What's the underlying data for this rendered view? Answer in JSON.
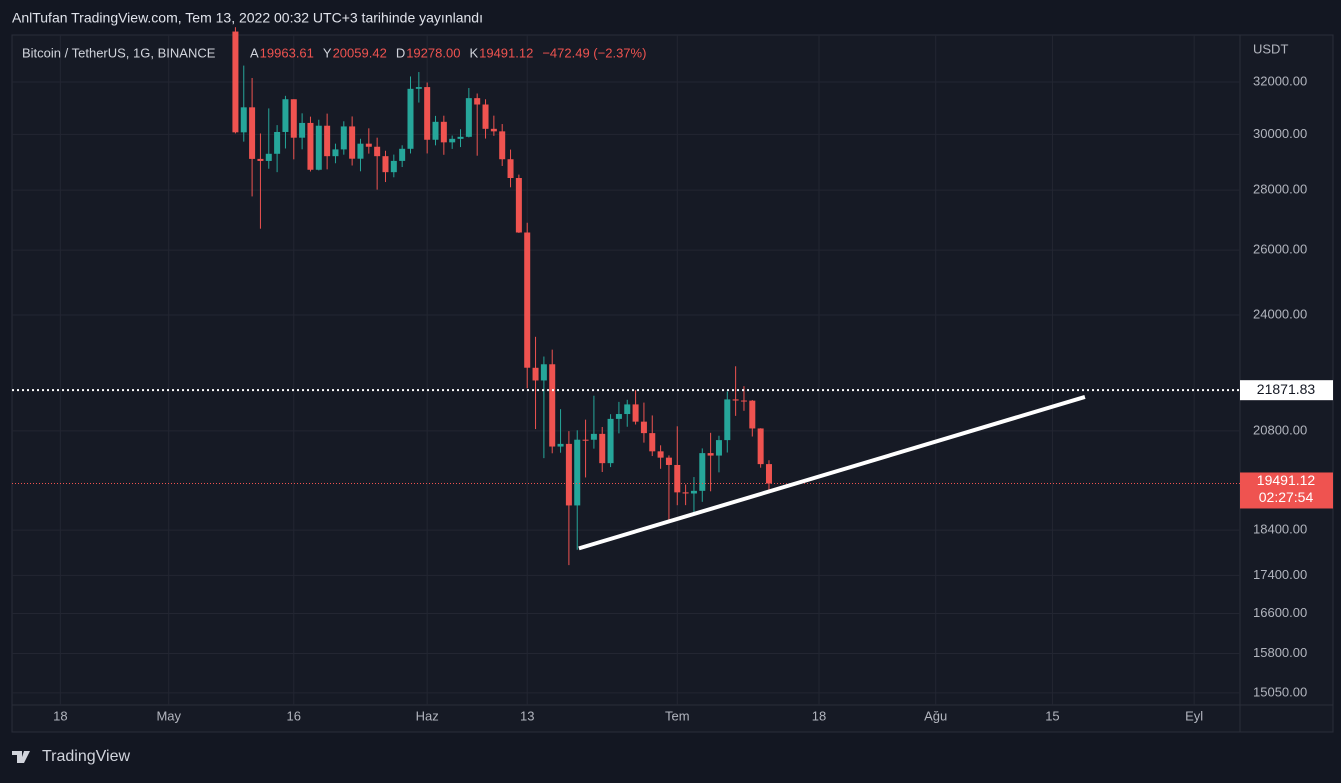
{
  "header": {
    "title": "AnlTufan TradingView.com, Tem 13, 2022 00:32 UTC+3 tarihinde yayınlandı"
  },
  "chart_data": {
    "type": "candlestick",
    "symbol": "Bitcoin / TetherUS, 1G, BINANCE",
    "ohlc_legend": [
      {
        "key": "A",
        "value": 19963.61,
        "label": "19963.61"
      },
      {
        "key": "Y",
        "value": 20059.42,
        "label": "20059.42"
      },
      {
        "key": "D",
        "value": 19278,
        "label": "19278.00"
      },
      {
        "key": "K",
        "value": 19491.12,
        "label": "19491.12"
      }
    ],
    "change": "−472.49 (−2.37%)",
    "currency": "USDT",
    "log_scale": true,
    "grid": true,
    "up_color": "#26a69a",
    "down_color": "#ef5350",
    "xlim": [
      102.2,
      249.5
    ],
    "xticks": [
      {
        "value": 108,
        "label": "18"
      },
      {
        "value": 121,
        "label": "May"
      },
      {
        "value": 136,
        "label": "16"
      },
      {
        "value": 152,
        "label": "Haz"
      },
      {
        "value": 164,
        "label": "13"
      },
      {
        "value": 182,
        "label": "Tem"
      },
      {
        "value": 199,
        "label": "18"
      },
      {
        "value": 213,
        "label": "Ağu"
      },
      {
        "value": 227,
        "label": "15"
      },
      {
        "value": 244,
        "label": "Eyl"
      }
    ],
    "ylim": [
      14826,
      33915
    ],
    "yticks": [
      {
        "value": 15050,
        "label": "15050.00"
      },
      {
        "value": 15800,
        "label": "15800.00"
      },
      {
        "value": 16600,
        "label": "16600.00"
      },
      {
        "value": 17400,
        "label": "17400.00"
      },
      {
        "value": 18400,
        "label": "18400.00"
      },
      {
        "value": 20800,
        "label": "20800.00"
      },
      {
        "value": 24000,
        "label": "24000.00"
      },
      {
        "value": 26000,
        "label": "26000.00"
      },
      {
        "value": 28000,
        "label": "28000.00"
      },
      {
        "value": 30000,
        "label": "30000.00"
      },
      {
        "value": 32000,
        "label": "32000.00"
      }
    ],
    "x": [
      129,
      130,
      131,
      132,
      133,
      134,
      135,
      136,
      137,
      138,
      139,
      140,
      141,
      142,
      143,
      144,
      145,
      146,
      147,
      148,
      149,
      150,
      151,
      152,
      153,
      154,
      155,
      156,
      157,
      158,
      159,
      160,
      161,
      162,
      163,
      164,
      165,
      166,
      167,
      168,
      169,
      170,
      171,
      172,
      173,
      174,
      175,
      176,
      177,
      178,
      179,
      180,
      181,
      182,
      183,
      184,
      185,
      186,
      187,
      188,
      189,
      190,
      191,
      192,
      193
    ],
    "open": [
      34060,
      30074,
      31017,
      29103,
      29029,
      29287,
      30087,
      31328,
      29875,
      30425,
      28715,
      30320,
      29201,
      29446,
      30294,
      29110,
      29655,
      29543,
      29201,
      28630,
      29031,
      29468,
      31734,
      31802,
      29799,
      30467,
      29704,
      29833,
      29907,
      31371,
      31125,
      30204,
      30110,
      29091,
      28424,
      26574,
      22485,
      22136,
      22583,
      20401,
      20468,
      18970,
      20574,
      20573,
      20723,
      19987,
      21110,
      21237,
      21491,
      21038,
      20742,
      20281,
      20123,
      19942,
      19279,
      19252,
      19315,
      20236,
      20175,
      20564,
      21624,
      21594,
      21591,
      20862,
      19963.61
    ],
    "high": [
      34243,
      32658,
      32162,
      30032,
      30976,
      30343,
      31460,
      31328,
      30788,
      30662,
      30545,
      30777,
      29656,
      30487,
      30670,
      29835,
      30223,
      29876,
      29397,
      29258,
      29597,
      32222,
      32399,
      31982,
      30691,
      30698,
      29955,
      30189,
      31765,
      31551,
      31327,
      30700,
      30383,
      29440,
      28544,
      26895,
      23362,
      22800,
      22995,
      21365,
      20792,
      20815,
      21090,
      21723,
      20900,
      21233,
      21558,
      21614,
      21868,
      21539,
      21200,
      20432,
      20179,
      20918,
      19467,
      19647,
      20354,
      20750,
      20675,
      21838,
      22527,
      21980,
      21607,
      20868,
      20059.42
    ],
    "low": [
      30033,
      29730,
      27785,
      26700,
      28751,
      28630,
      29480,
      29087,
      29450,
      28654,
      28693,
      28730,
      28947,
      29255,
      28866,
      28660,
      29294,
      28019,
      28283,
      28450,
      28812,
      29299,
      31200,
      29300,
      29594,
      29251,
      29465,
      29531,
      29886,
      29218,
      29843,
      29944,
      28850,
      28100,
      26560,
      21925,
      20846,
      20111,
      20232,
      20246,
      17622,
      17960,
      19637,
      20348,
      19770,
      19890,
      20736,
      20906,
      20964,
      20500,
      20163,
      19848,
      18626,
      18975,
      18977,
      18781,
      19055,
      19304,
      19761,
      20251,
      21189,
      21322,
      20655,
      19875,
      19278
    ],
    "close": [
      30074,
      31017,
      29103,
      29029,
      29287,
      30087,
      31328,
      29875,
      30425,
      28715,
      30320,
      29201,
      29446,
      30294,
      29110,
      29655,
      29543,
      29201,
      28630,
      29031,
      29468,
      31734,
      31802,
      29799,
      30467,
      29704,
      29833,
      29907,
      31371,
      31125,
      30204,
      30110,
      29091,
      28424,
      26574,
      22487,
      22136,
      22583,
      20401,
      20468,
      18970,
      20574,
      20573,
      20723,
      19987,
      21110,
      21237,
      21491,
      21038,
      20742,
      20281,
      20123,
      19942,
      19279,
      19252,
      19315,
      20236,
      20175,
      20564,
      21624,
      21594,
      21591,
      20862,
      19963,
      19491.12
    ],
    "level_line": {
      "value": 21871.83,
      "label": "21871.83"
    },
    "price_line": {
      "value": 19491.12,
      "label": "19491.12",
      "countdown": "02:27:54"
    },
    "trendline": {
      "x": [
        170.2,
        230.9
      ],
      "y": [
        17990,
        21690
      ]
    }
  },
  "footer": {
    "brand": "TradingView"
  }
}
